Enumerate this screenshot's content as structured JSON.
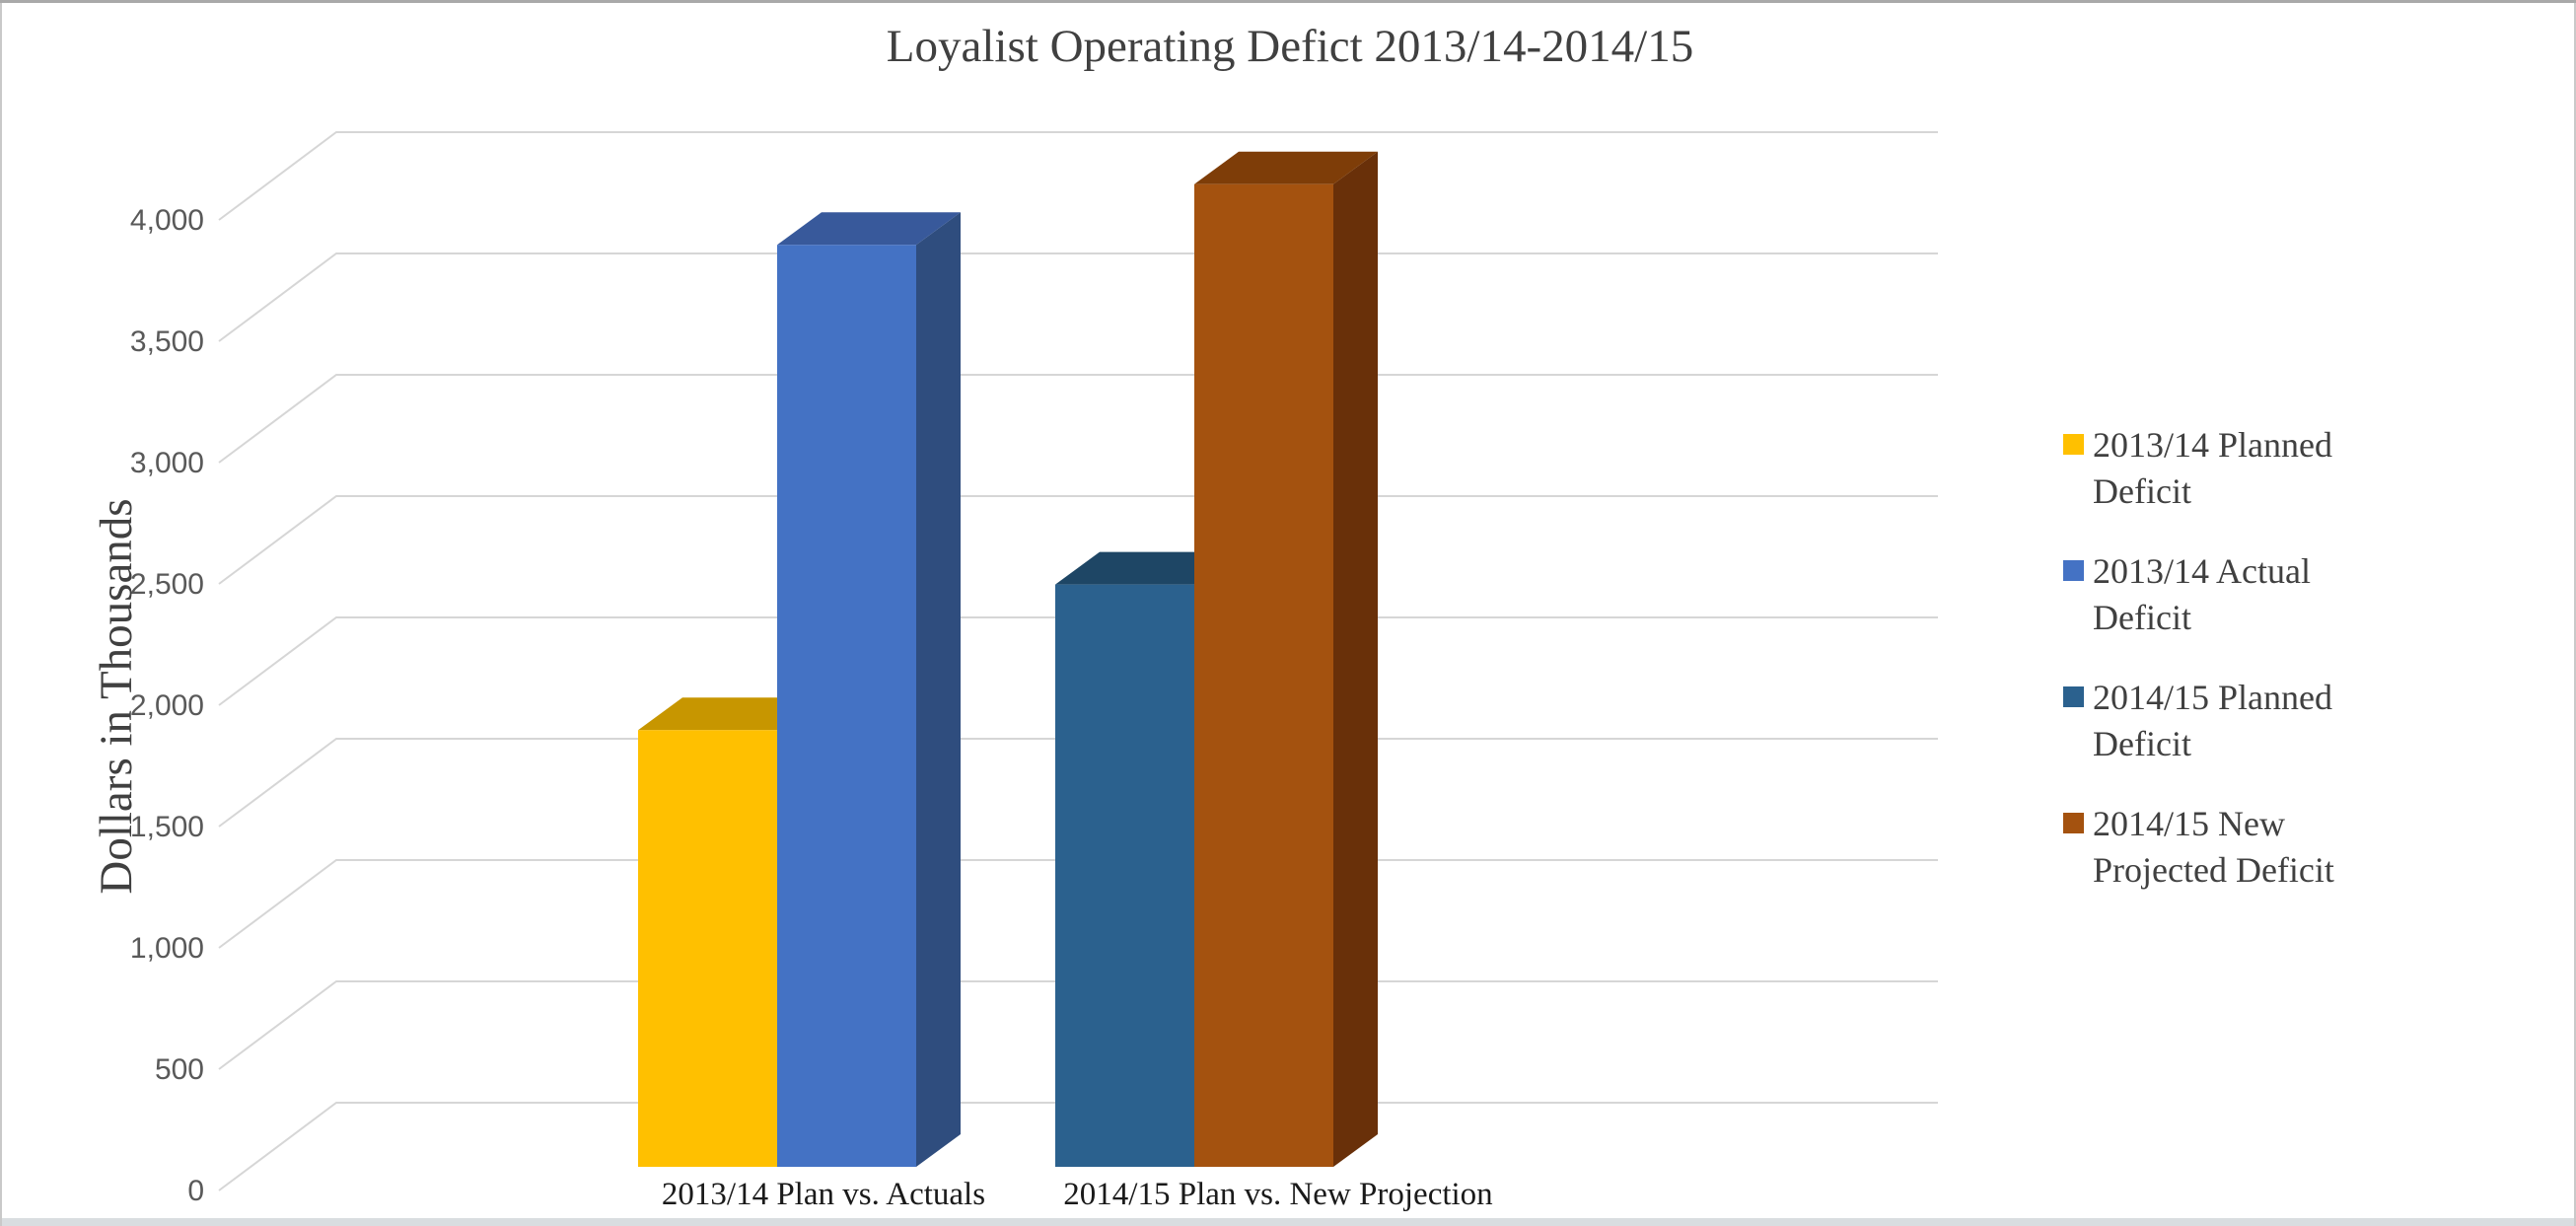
{
  "chart_data": {
    "type": "bar",
    "projection": "3d-clustered-column",
    "title": "Loyalist Operating Defict 2013/14-2014/15",
    "ylabel": "Dollars in Thousands",
    "xlabel": "",
    "categories": [
      "2013/14 Plan vs. Actuals",
      "2014/15 Plan vs. New Projection"
    ],
    "series": [
      {
        "name": "2013/14 Planned Deficit",
        "legend_lines": [
          "2013/14 Planned",
          "Deficit"
        ],
        "values": [
          1800,
          null
        ],
        "color": "#FFC000",
        "top_color": "#C79600",
        "side_color": "#9C7500"
      },
      {
        "name": "2013/14 Actual Deficit",
        "legend_lines": [
          "2013/14 Actual",
          "Deficit"
        ],
        "values": [
          3800,
          null
        ],
        "color": "#4472C4",
        "top_color": "#38599B",
        "side_color": "#2F4D7E"
      },
      {
        "name": "2014/15 Planned Deficit",
        "legend_lines": [
          "2014/15 Planned",
          "Deficit"
        ],
        "values": [
          null,
          2400
        ],
        "color": "#2B618E",
        "top_color": "#1E4665",
        "side_color": "#1A3C58"
      },
      {
        "name": "2014/15 New Projected Deficit",
        "legend_lines": [
          "2014/15 New",
          "Projected Deficit"
        ],
        "values": [
          null,
          4050
        ],
        "color": "#A4520F",
        "top_color": "#7E3D08",
        "side_color": "#693009"
      }
    ],
    "y_axis": {
      "min": 0,
      "max": 4000,
      "step": 500,
      "tick_labels": [
        "0",
        "500",
        "1,000",
        "1,500",
        "2,000",
        "2,500",
        "3,000",
        "3,500",
        "4,000"
      ]
    },
    "legend_position": "right",
    "grid": true,
    "gridline_color": "#D6D6D6",
    "title_color": "#404040",
    "tick_color": "#595959",
    "category_label_color": "#1a1a1a"
  }
}
